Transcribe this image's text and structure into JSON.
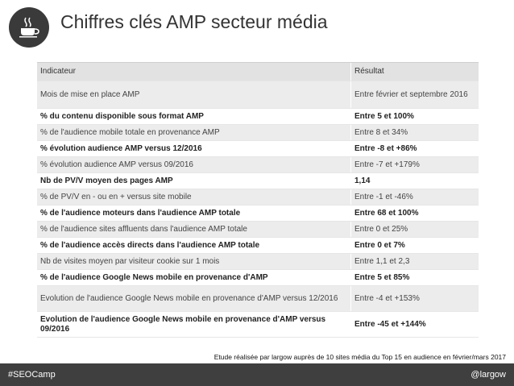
{
  "header": {
    "icon": "coffee-cup-icon",
    "title": "Chiffres clés AMP secteur média"
  },
  "table": {
    "headers": {
      "indicator": "Indicateur",
      "result": "Résultat"
    },
    "rows": [
      {
        "indicator": "Mois de mise en place AMP",
        "result": "Entre février et septembre 2016",
        "bold": false
      },
      {
        "indicator": "% du contenu disponible sous format AMP",
        "result": "Entre 5 et 100%",
        "bold": true
      },
      {
        "indicator": "% de l'audience mobile totale en provenance AMP",
        "result": "Entre 8 et 34%",
        "bold": false
      },
      {
        "indicator": "% évolution audience AMP versus 12/2016",
        "result": "Entre -8 et +86%",
        "bold": true
      },
      {
        "indicator": "% évolution audience AMP versus 09/2016",
        "result": "Entre -7 et +179%",
        "bold": false
      },
      {
        "indicator": "Nb de PV/V moyen des pages AMP",
        "result": "1,14",
        "bold": true
      },
      {
        "indicator": "% de PV/V en - ou en + versus site mobile",
        "result": "Entre -1 et -46%",
        "bold": false
      },
      {
        "indicator": "% de l'audience moteurs dans l'audience AMP totale",
        "result": "Entre 68 et 100%",
        "bold": true
      },
      {
        "indicator": "% de l'audience sites affluents dans l'audience AMP totale",
        "result": "Entre 0 et 25%",
        "bold": false
      },
      {
        "indicator": "% de l'audience accès directs dans l'audience AMP totale",
        "result": "Entre 0 et 7%",
        "bold": true
      },
      {
        "indicator": "Nb de visites moyen par visiteur cookie sur 1 mois",
        "result": "Entre 1,1 et 2,3",
        "bold": false
      },
      {
        "indicator": "% de l'audience Google News mobile en provenance d'AMP",
        "result": "Entre 5 et 85%",
        "bold": true
      },
      {
        "indicator": "Evolution de l'audience Google News mobile en provenance d'AMP versus 12/2016",
        "result": "Entre -4 et +153%",
        "bold": false
      },
      {
        "indicator": "Evolution de l'audience Google News mobile en provenance d'AMP versus 09/2016",
        "result": "Entre -45 et +144%",
        "bold": true
      }
    ]
  },
  "note": "Etude réalisée par largow auprès de 10 sites média du Top 15 en audience en février/mars 2017",
  "footer": {
    "left": "#SEOCamp",
    "right": "@largow"
  }
}
